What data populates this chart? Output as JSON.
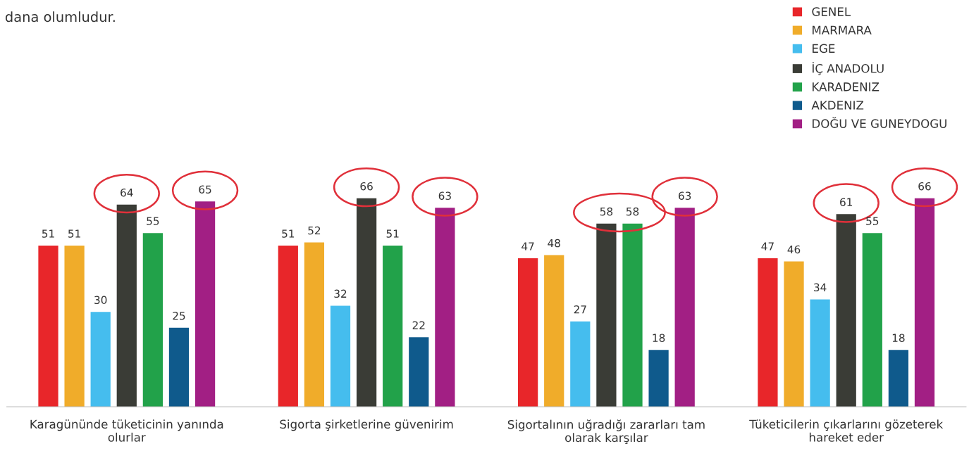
{
  "chart_data": {
    "type": "bar",
    "categories": [
      "Karagününde tüketicinin yanında olurlar",
      "Sigorta şirketlerine güvenirim",
      "Sigortalının uğradığı zararları tam olarak karşılar",
      "Tüketicilerin çıkarlarını gözeterek hareket eder"
    ],
    "series": [
      {
        "name": "GENEL",
        "color": "#e8262a",
        "values": [
          51,
          51,
          47,
          47
        ]
      },
      {
        "name": "MARMARA",
        "color": "#f0ac2a",
        "values": [
          51,
          52,
          48,
          46
        ]
      },
      {
        "name": "EGE",
        "color": "#45bdee",
        "values": [
          30,
          32,
          27,
          34
        ]
      },
      {
        "name": "İÇ ANADOLU",
        "color": "#3a3c36",
        "values": [
          64,
          66,
          58,
          61
        ]
      },
      {
        "name": "KARADENIZ",
        "color": "#22a24a",
        "values": [
          55,
          51,
          58,
          55
        ]
      },
      {
        "name": "AKDENIZ",
        "color": "#0f5a8c",
        "values": [
          25,
          22,
          18,
          18
        ]
      },
      {
        "name": "DOĞU VE GUNEYDOGU",
        "color": "#a21f84",
        "values": [
          65,
          63,
          63,
          66
        ]
      }
    ],
    "annotations": [
      "dana olumludur."
    ],
    "data_labels": true,
    "legend": "top right",
    "tick_labels": "x",
    "grid": false
  }
}
